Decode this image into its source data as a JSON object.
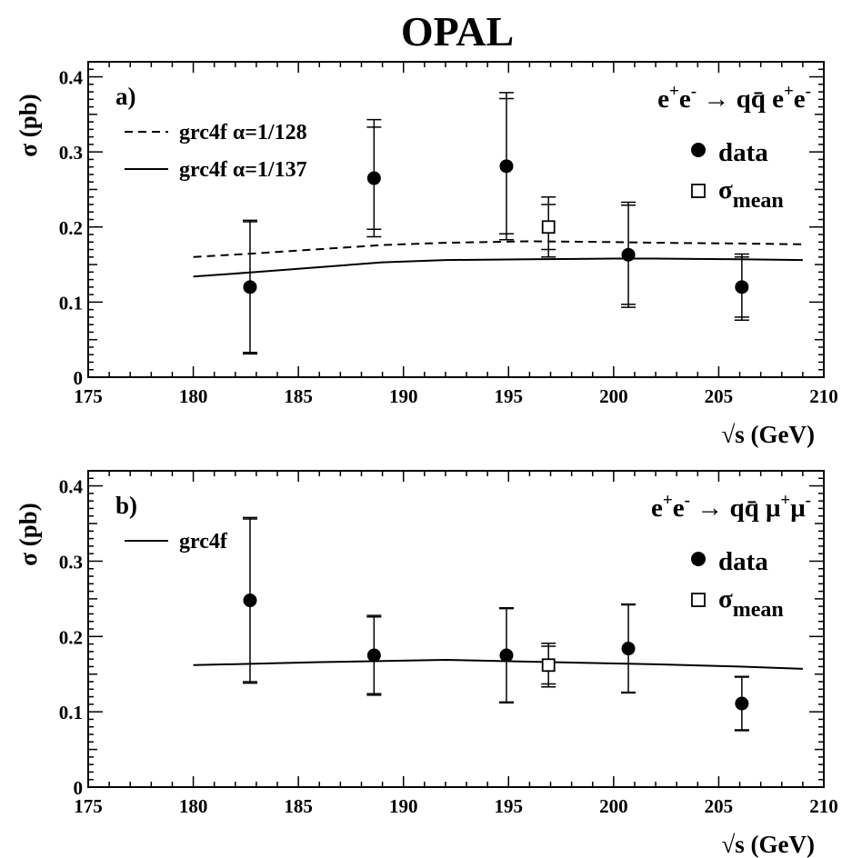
{
  "figure_title": "OPAL",
  "chart_data": [
    {
      "type": "scatter",
      "panel_label": "a)",
      "process": {
        "lhs": "e",
        "lhs_sup1": "+",
        "lhs2": "e",
        "lhs_sup2": "-",
        "arrow": "→",
        "rhs": "qq̄ e",
        "rhs_sup1": "+",
        "rhs2": "e",
        "rhs_sup2": "-"
      },
      "ylabel": "σ (pb)",
      "xlabel": {
        "sqrt": "√s",
        "unit": "(GeV)"
      },
      "xlim": [
        175,
        210
      ],
      "ylim": [
        0,
        0.42
      ],
      "xticks": [
        175,
        180,
        185,
        190,
        195,
        200,
        205,
        210
      ],
      "yticks": [
        0,
        0.1,
        0.2,
        0.3,
        0.4
      ],
      "ytick_labels": [
        "0",
        "0.1",
        "0.2",
        "0.3",
        "0.4"
      ],
      "legend_lines": [
        {
          "label": "grc4f  α=1/128",
          "style": "dashed"
        },
        {
          "label": "grc4f  α=1/137",
          "style": "solid"
        }
      ],
      "legend_markers": {
        "data": "data",
        "mean": "σ",
        "mean_sub": "mean"
      },
      "series": [
        {
          "name": "grc4f α=1/128",
          "style": "dashed",
          "x": [
            180,
            183,
            189,
            192,
            196,
            200,
            202,
            206,
            209
          ],
          "y": [
            0.16,
            0.165,
            0.176,
            0.179,
            0.181,
            0.18,
            0.179,
            0.178,
            0.177
          ]
        },
        {
          "name": "grc4f α=1/137",
          "style": "solid",
          "x": [
            180,
            183,
            189,
            192,
            196,
            200,
            202,
            206,
            209
          ],
          "y": [
            0.134,
            0.14,
            0.153,
            0.156,
            0.157,
            0.158,
            0.158,
            0.157,
            0.156
          ]
        }
      ],
      "data_points": [
        {
          "x": 182.7,
          "y": 0.12,
          "err_stat": 0.087,
          "err_tot": 0.089
        },
        {
          "x": 188.6,
          "y": 0.265,
          "err_stat": 0.068,
          "err_tot": 0.078
        },
        {
          "x": 194.9,
          "y": 0.281,
          "err_stat": 0.09,
          "err_tot": 0.098
        },
        {
          "x": 200.7,
          "y": 0.163,
          "err_stat": 0.066,
          "err_tot": 0.07
        },
        {
          "x": 206.1,
          "y": 0.12,
          "err_stat": 0.04,
          "err_tot": 0.044
        }
      ],
      "mean_point": {
        "x": 196.9,
        "y": 0.2,
        "err_stat": 0.03,
        "err_tot": 0.04
      }
    },
    {
      "type": "scatter",
      "panel_label": "b)",
      "process": {
        "lhs": "e",
        "lhs_sup1": "+",
        "lhs2": "e",
        "lhs_sup2": "-",
        "arrow": "→",
        "rhs": "qq̄ μ",
        "rhs_sup1": "+",
        "rhs2": "μ",
        "rhs_sup2": "-"
      },
      "ylabel": "σ (pb)",
      "xlabel": {
        "sqrt": "√s",
        "unit": "(GeV)"
      },
      "xlim": [
        175,
        210
      ],
      "ylim": [
        0,
        0.42
      ],
      "xticks": [
        175,
        180,
        185,
        190,
        195,
        200,
        205,
        210
      ],
      "yticks": [
        0,
        0.1,
        0.2,
        0.3,
        0.4
      ],
      "ytick_labels": [
        "0",
        "0.1",
        "0.2",
        "0.3",
        "0.4"
      ],
      "legend_lines": [
        {
          "label": "grc4f",
          "style": "solid"
        }
      ],
      "legend_markers": {
        "data": "data",
        "mean": "σ",
        "mean_sub": "mean"
      },
      "series": [
        {
          "name": "grc4f",
          "style": "solid",
          "x": [
            180,
            186,
            192,
            197,
            202,
            206,
            209
          ],
          "y": [
            0.162,
            0.166,
            0.169,
            0.166,
            0.163,
            0.16,
            0.157
          ]
        }
      ],
      "data_points": [
        {
          "x": 182.7,
          "y": 0.248,
          "err_stat": 0.108,
          "err_tot": 0.11
        },
        {
          "x": 188.6,
          "y": 0.175,
          "err_stat": 0.051,
          "err_tot": 0.053
        },
        {
          "x": 194.9,
          "y": 0.175,
          "err_stat": 0.062,
          "err_tot": 0.063
        },
        {
          "x": 200.7,
          "y": 0.184,
          "err_stat": 0.058,
          "err_tot": 0.059
        },
        {
          "x": 206.1,
          "y": 0.111,
          "err_stat": 0.035,
          "err_tot": 0.036
        }
      ],
      "mean_point": {
        "x": 196.9,
        "y": 0.162,
        "err_stat": 0.025,
        "err_tot": 0.029
      }
    }
  ]
}
